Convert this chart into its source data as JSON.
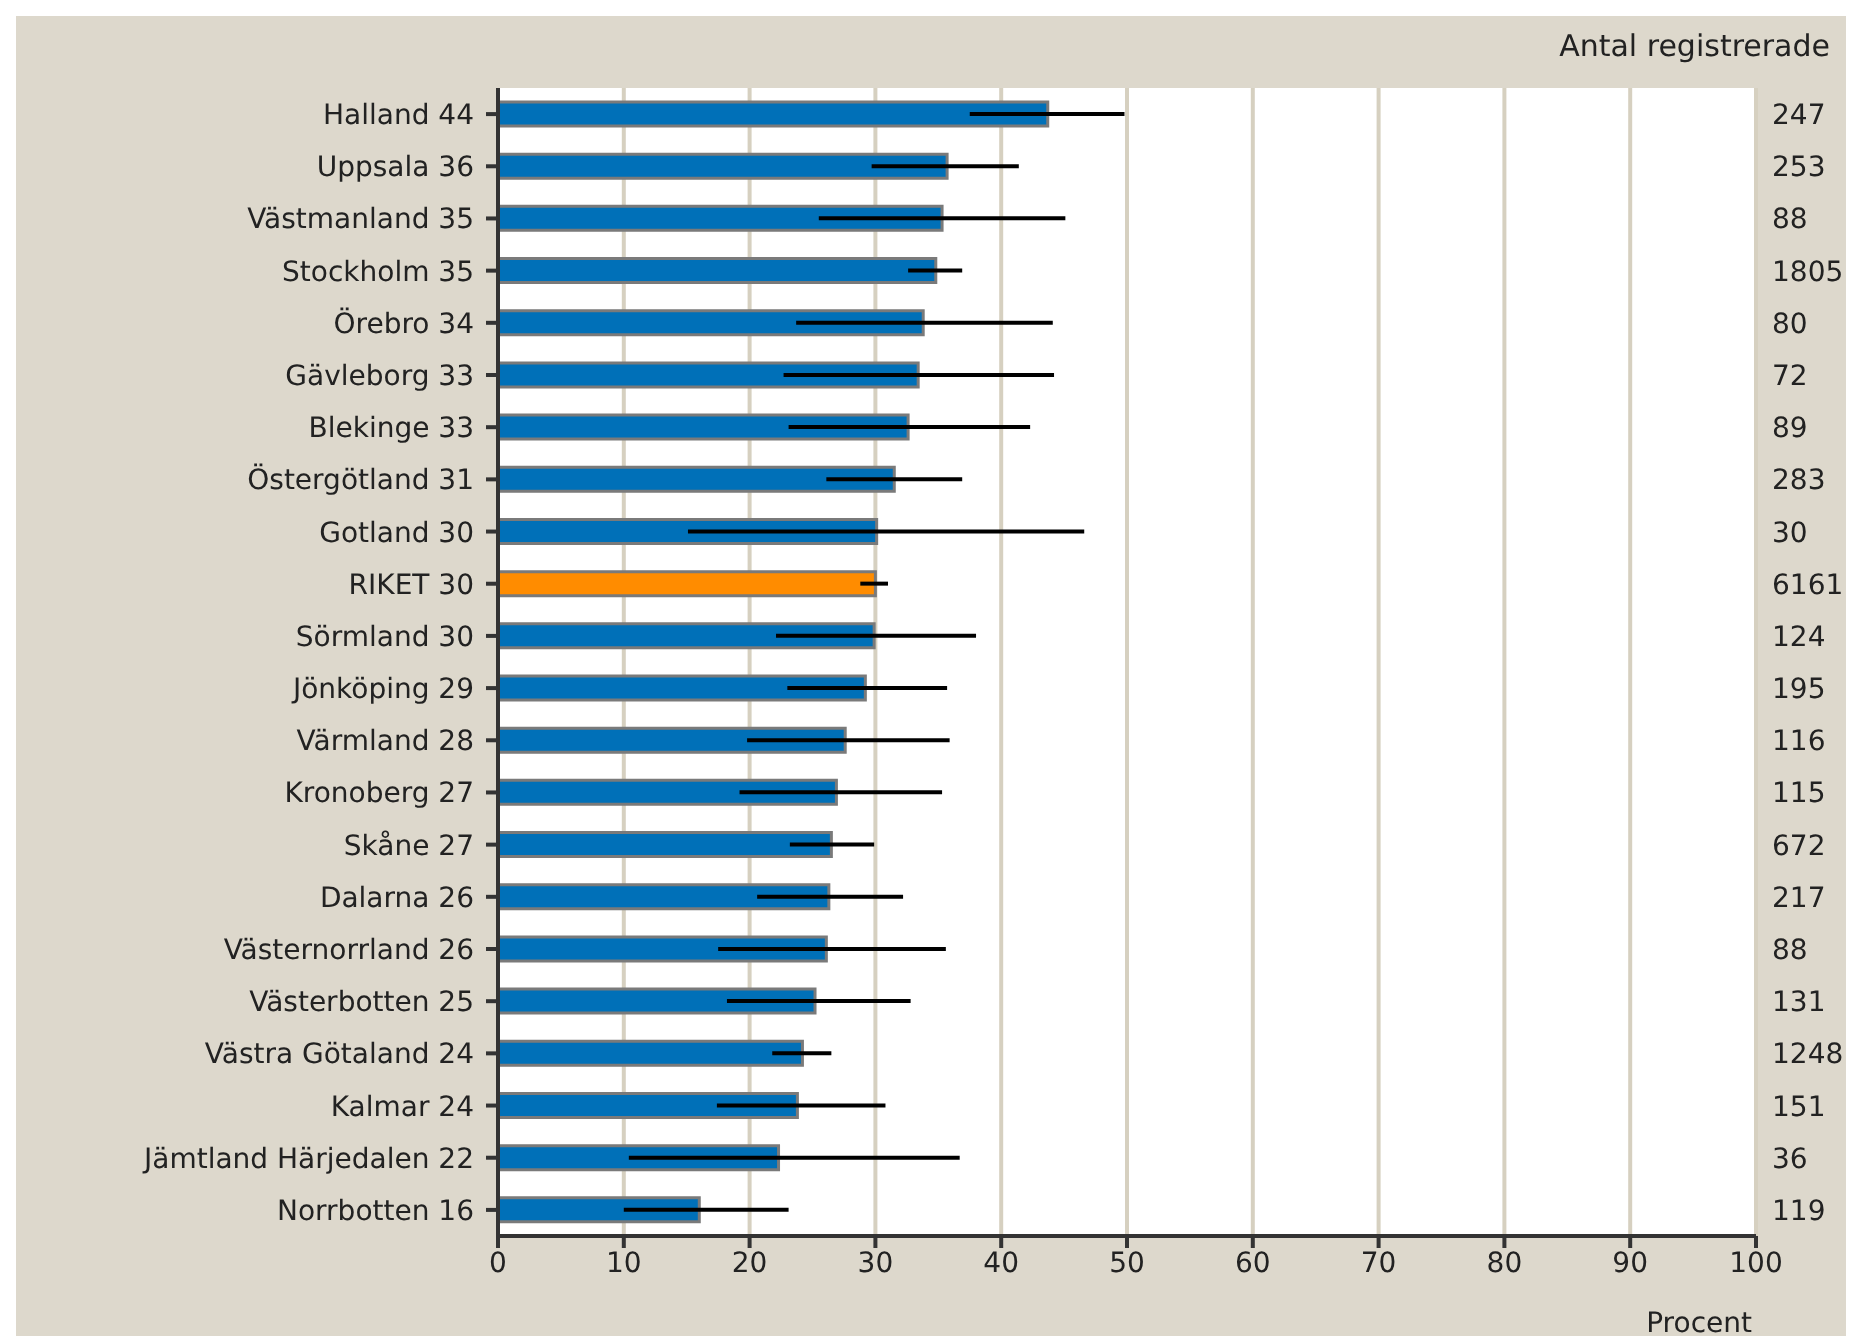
{
  "chart_data": {
    "type": "bar",
    "orientation": "horizontal",
    "xlabel": "Procent",
    "categories": [
      "Halland 44",
      "Uppsala 36",
      "Västmanland 35",
      "Stockholm 35",
      "Örebro 34",
      "Gävleborg 33",
      "Blekinge 33",
      "Östergötland 31",
      "Gotland 30",
      "RIKET 30",
      "Sörmland 30",
      "Jönköping 29",
      "Värmland 28",
      "Kronoberg 27",
      "Skåne 27",
      "Dalarna 26",
      "Västernorrland 26",
      "Västerbotten 25",
      "Västra Götaland 24",
      "Kalmar 24",
      "Jämtland Härjedalen 22",
      "Norrbotten 16"
    ],
    "values": [
      43.7,
      35.7,
      35.3,
      34.8,
      33.8,
      33.4,
      32.6,
      31.5,
      30.1,
      30.0,
      29.9,
      29.2,
      27.6,
      26.9,
      26.5,
      26.3,
      26.1,
      25.2,
      24.2,
      23.8,
      22.3,
      16.0
    ],
    "errors": [
      [
        37.5,
        49.8
      ],
      [
        29.7,
        41.4
      ],
      [
        25.5,
        45.1
      ],
      [
        32.6,
        36.9
      ],
      [
        23.7,
        44.1
      ],
      [
        22.7,
        44.2
      ],
      [
        23.1,
        42.3
      ],
      [
        26.1,
        36.9
      ],
      [
        15.1,
        46.6
      ],
      [
        28.8,
        31.0
      ],
      [
        22.1,
        38.0
      ],
      [
        23.0,
        35.7
      ],
      [
        19.8,
        35.9
      ],
      [
        19.2,
        35.3
      ],
      [
        23.2,
        29.9
      ],
      [
        20.6,
        32.2
      ],
      [
        17.5,
        35.6
      ],
      [
        18.2,
        32.8
      ],
      [
        21.8,
        26.5
      ],
      [
        17.4,
        30.8
      ],
      [
        10.4,
        36.7
      ],
      [
        10.0,
        23.1
      ]
    ],
    "colors": [
      "#0070b8",
      "#0070b8",
      "#0070b8",
      "#0070b8",
      "#0070b8",
      "#0070b8",
      "#0070b8",
      "#0070b8",
      "#0070b8",
      "#ff8c00",
      "#0070b8",
      "#0070b8",
      "#0070b8",
      "#0070b8",
      "#0070b8",
      "#0070b8",
      "#0070b8",
      "#0070b8",
      "#0070b8",
      "#0070b8",
      "#0070b8",
      "#0070b8"
    ],
    "xlim": [
      0,
      100
    ],
    "xticks": [
      0,
      10,
      20,
      30,
      40,
      50,
      60,
      70,
      80,
      90,
      100
    ],
    "grid": "x",
    "annotations": [
      "Antal registrerade",
      "247",
      "253",
      "88",
      "1805",
      "80",
      "72",
      "89",
      "283",
      "30",
      "6161",
      "124",
      "195",
      "116",
      "115",
      "672",
      "217",
      "88",
      "131",
      "1248",
      "151",
      "36",
      "119"
    ]
  }
}
